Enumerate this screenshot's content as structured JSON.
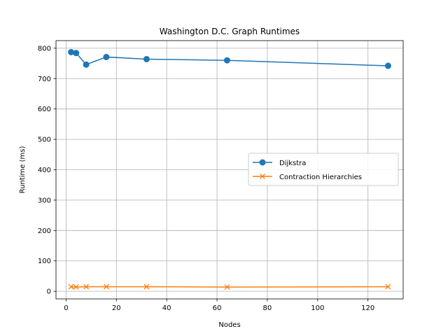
{
  "chart_data": {
    "type": "line",
    "title": "Washington D.C. Graph Runtimes",
    "xlabel": "Nodes",
    "ylabel": "Runtime (ms)",
    "xlim": [
      -4,
      134
    ],
    "ylim": [
      -25,
      825
    ],
    "xticks": [
      0,
      20,
      40,
      60,
      80,
      100,
      120
    ],
    "yticks": [
      0,
      100,
      200,
      300,
      400,
      500,
      600,
      700,
      800
    ],
    "grid": true,
    "legend_position": "center-right",
    "x": [
      2,
      4,
      8,
      16,
      32,
      64,
      128
    ],
    "series": [
      {
        "name": "Dijkstra",
        "color": "#1f77b4",
        "marker": "circle",
        "values": [
          787,
          784,
          746,
          771,
          764,
          760,
          742
        ]
      },
      {
        "name": "Contraction Hierarchies",
        "color": "#ff7f0e",
        "marker": "x",
        "values": [
          15,
          14,
          15,
          15,
          15,
          14,
          15
        ]
      }
    ]
  }
}
